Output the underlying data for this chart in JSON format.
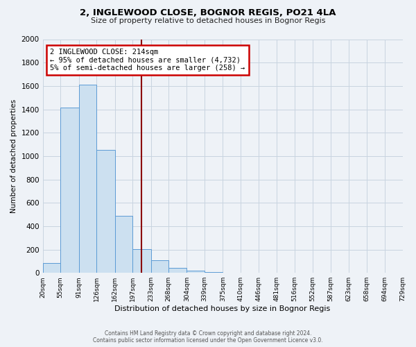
{
  "title": "2, INGLEWOOD CLOSE, BOGNOR REGIS, PO21 4LA",
  "subtitle": "Size of property relative to detached houses in Bognor Regis",
  "xlabel": "Distribution of detached houses by size in Bognor Regis",
  "ylabel": "Number of detached properties",
  "bin_edges": [
    20,
    55,
    91,
    126,
    162,
    197,
    233,
    268,
    304,
    339,
    375,
    410,
    446,
    481,
    516,
    552,
    587,
    623,
    658,
    694,
    729
  ],
  "bar_heights": [
    85,
    1415,
    1610,
    1050,
    490,
    205,
    110,
    40,
    20,
    5,
    0,
    0,
    0,
    0,
    0,
    0,
    0,
    0,
    0,
    0
  ],
  "bar_color": "#cce0f0",
  "bar_edge_color": "#5b9bd5",
  "vline_x": 214,
  "vline_color": "#8b0000",
  "ylim": [
    0,
    2000
  ],
  "yticks": [
    0,
    200,
    400,
    600,
    800,
    1000,
    1200,
    1400,
    1600,
    1800,
    2000
  ],
  "annotation_title": "2 INGLEWOOD CLOSE: 214sqm",
  "annotation_line1": "← 95% of detached houses are smaller (4,732)",
  "annotation_line2": "5% of semi-detached houses are larger (258) →",
  "annotation_box_color": "#ffffff",
  "annotation_box_edge": "#cc0000",
  "footer_line1": "Contains HM Land Registry data © Crown copyright and database right 2024.",
  "footer_line2": "Contains public sector information licensed under the Open Government Licence v3.0.",
  "background_color": "#eef2f7",
  "plot_background": "#eef2f7",
  "grid_color": "#c8d4e0"
}
